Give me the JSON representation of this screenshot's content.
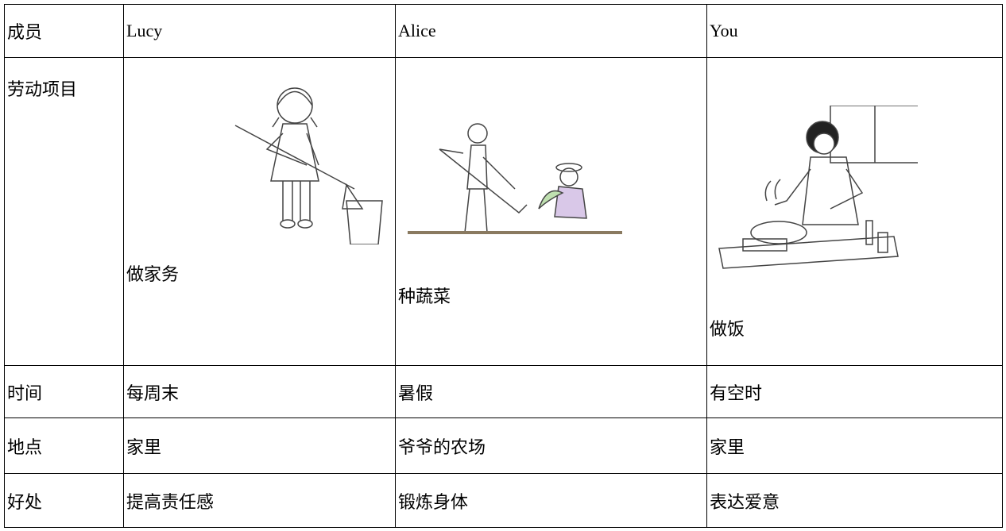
{
  "table": {
    "rows": [
      [
        "成员",
        "Lucy",
        "Alice",
        "You"
      ],
      [
        "劳动项目",
        "做家务",
        "种蔬菜",
        "做饭"
      ],
      [
        "时间",
        "每周末",
        "暑假",
        "有空时"
      ],
      [
        "地点",
        "家里",
        "爷爷的农场",
        "家里"
      ],
      [
        "好处",
        "提高责任感",
        "锻炼身体",
        "表达爱意"
      ]
    ]
  }
}
